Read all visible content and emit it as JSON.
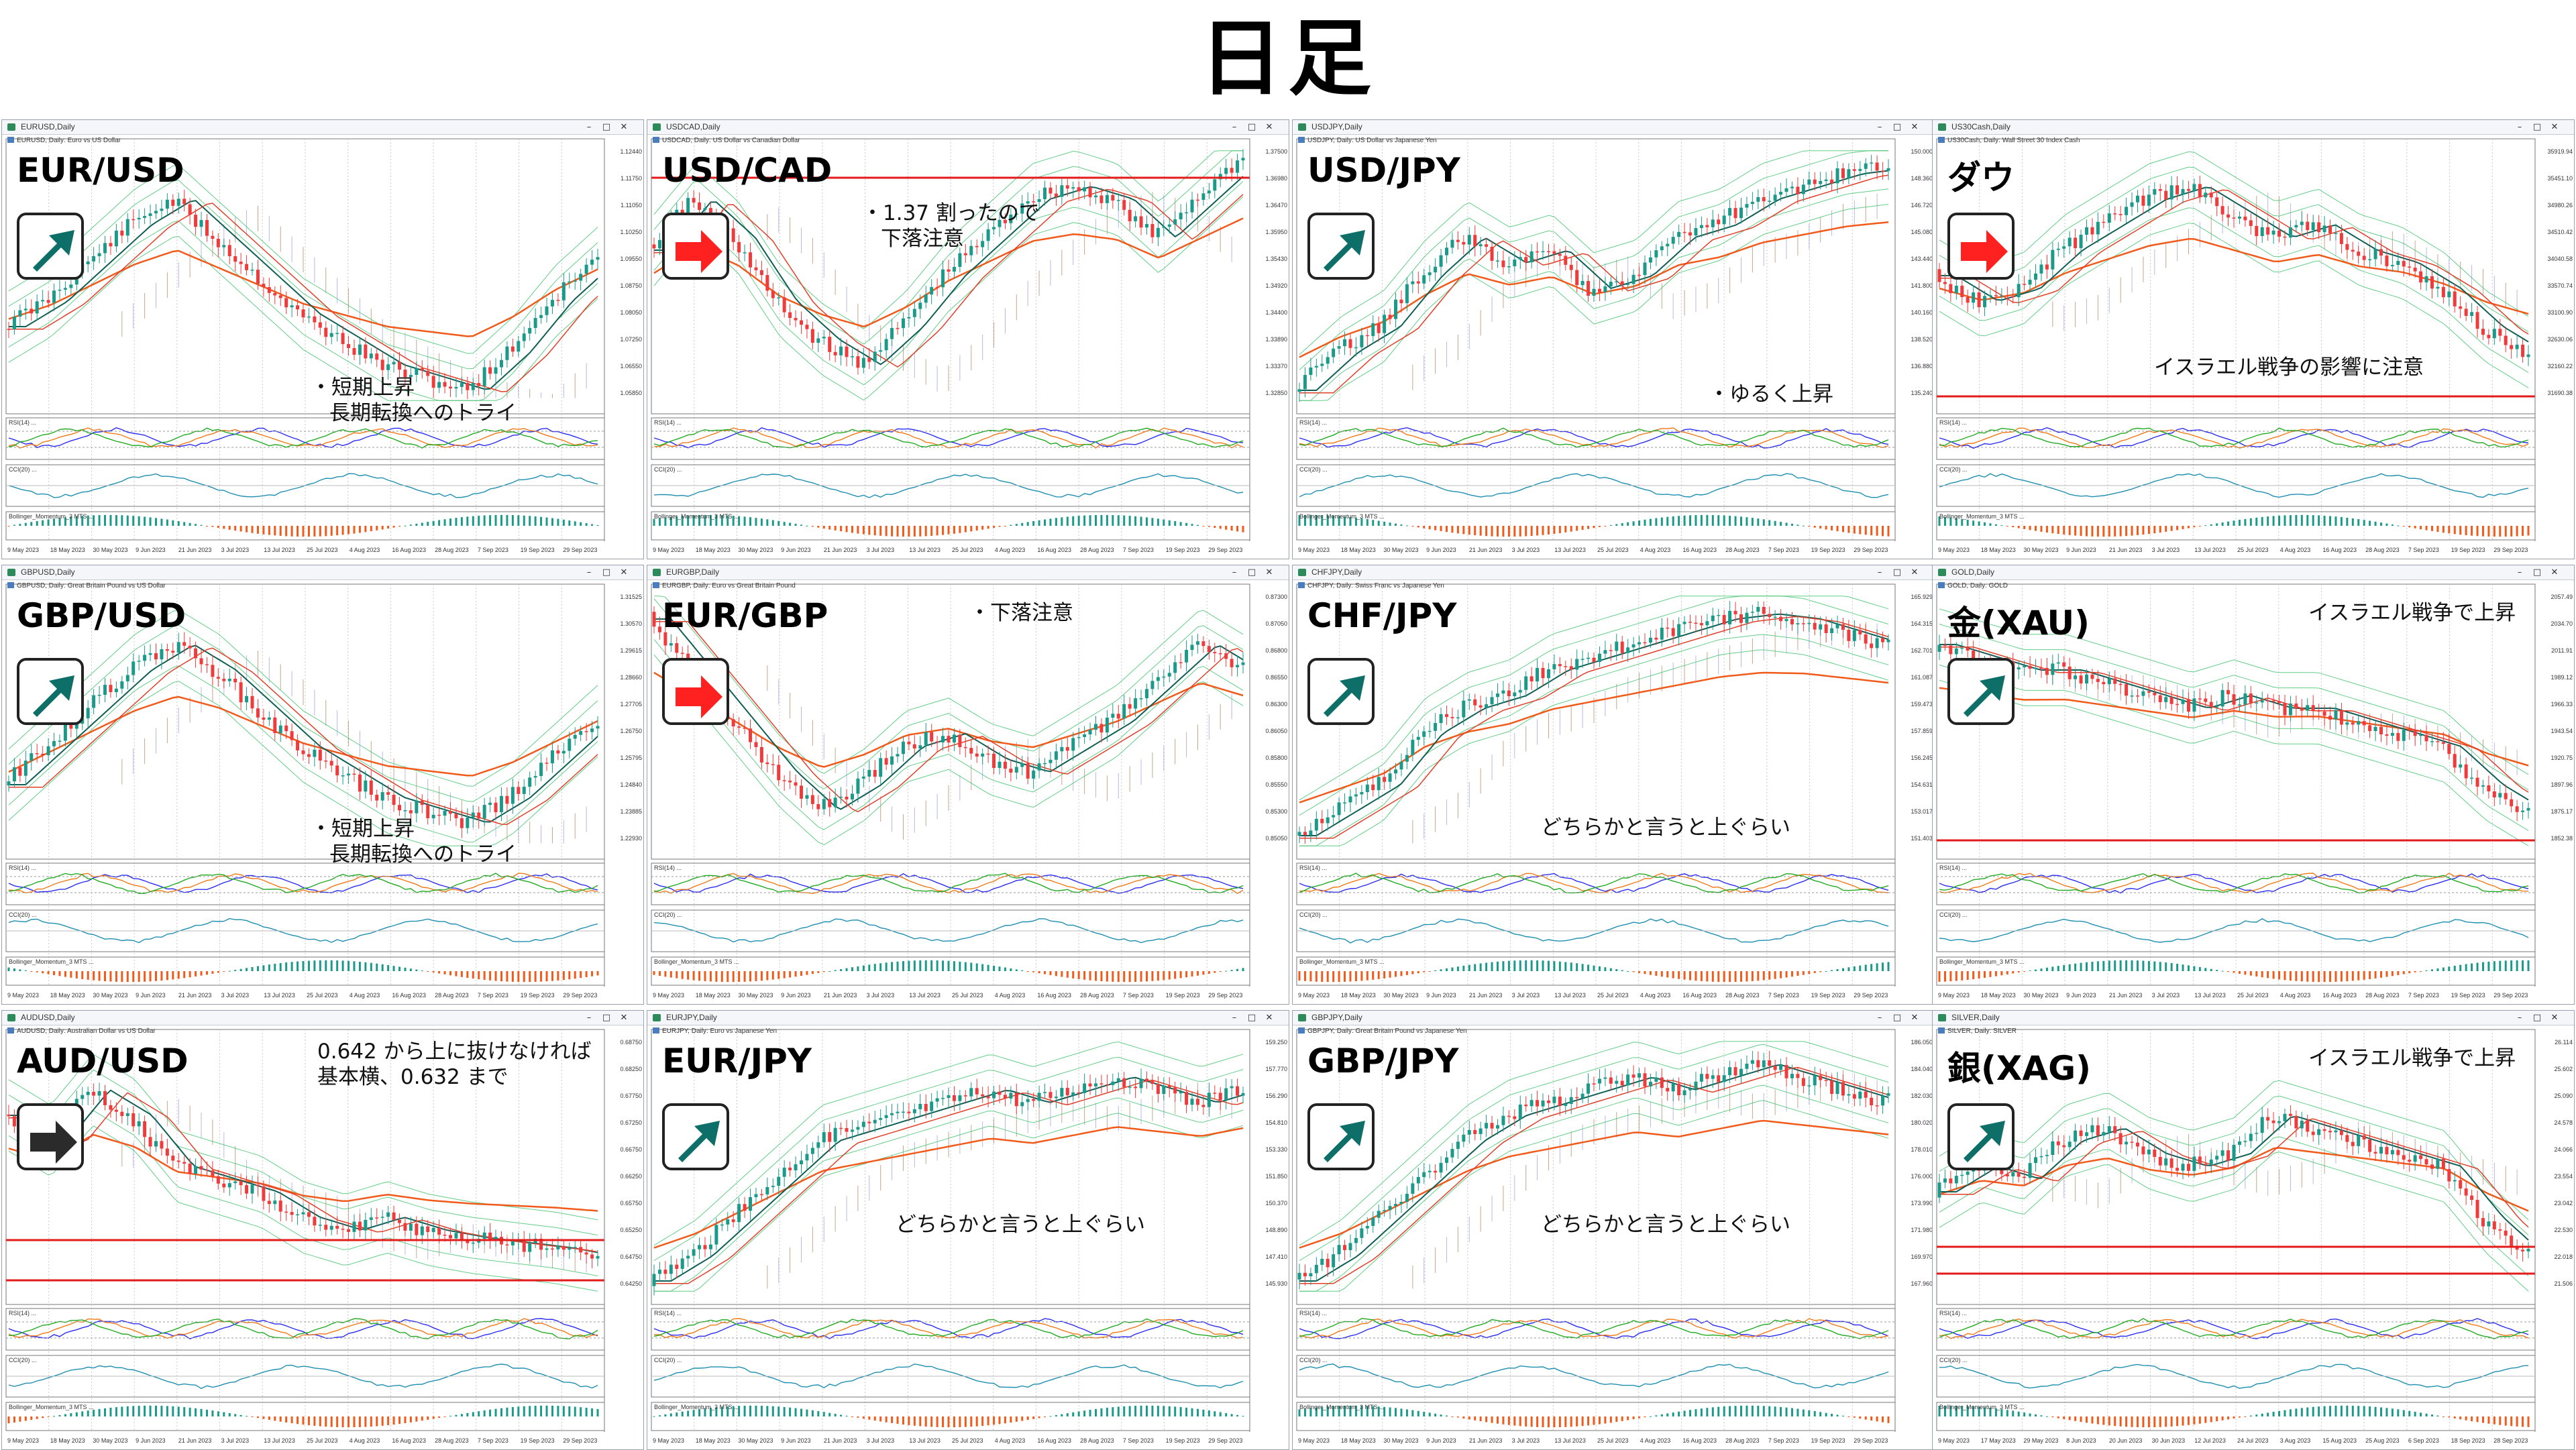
{
  "page_title": "日足",
  "colors": {
    "up_arrow": "#0e6f68",
    "down_arrow": "#ff2020",
    "flat_arrow": "#2b2b2b",
    "bull_candle": "#1b9a8a",
    "bear_candle": "#ef3b3b",
    "ma_long": "#f05a1a",
    "ma_short": "#0f5e55",
    "band": "#3cc06a"
  },
  "bottom_dates": [
    "9 May 2023",
    "18 May 2023",
    "30 May 2023",
    "9 Jun 2023",
    "21 Jun 2023",
    "3 Jul 2023",
    "13 Jul 2023",
    "25 Jul 2023",
    "4 Aug 2023",
    "16 Aug 2023",
    "28 Aug 2023",
    "7 Sep 2023",
    "19 Sep 2023",
    "29 Sep 2023"
  ],
  "bottom_dates_silver": [
    "9 May 2023",
    "17 May 2023",
    "29 May 2023",
    "8 Jun 2023",
    "20 Jun 2023",
    "30 Jun 2023",
    "12 Jul 2023",
    "24 Jul 2023",
    "3 Aug 2023",
    "15 Aug 2023",
    "25 Aug 2023",
    "6 Sep 2023",
    "18 Sep 2023",
    "28 Sep 2023"
  ],
  "indicator_labels": {
    "rsi": "RSI(14) ...",
    "cci": "CCI(20) ...",
    "momentum": "Bollinger_Momentum_3 MTS ..."
  },
  "panels": [
    {
      "id": "eurusd",
      "window_title": "EURUSD,Daily",
      "subtitle": "EURUSD, Daily: Euro vs US Dollar",
      "pair": "EUR/USD",
      "arrow": "up",
      "notes": [
        "・短期上昇",
        "長期転換へのトライ"
      ],
      "prices": [
        "1.12440",
        "1.11750",
        "1.11050",
        "1.10250",
        "1.09550",
        "1.08750",
        "1.08050",
        "1.07250",
        "1.06550",
        "1.05850"
      ]
    },
    {
      "id": "usdcad",
      "window_title": "USDCAD,Daily",
      "subtitle": "USDCAD, Daily: US Dollar vs Canadian Dollar",
      "pair": "USD/CAD",
      "arrow": "down",
      "notes": [
        "・1.37 割ったので",
        "下落注意"
      ],
      "prices": [
        "1.37500",
        "1.36980",
        "1.36470",
        "1.35950",
        "1.35430",
        "1.34920",
        "1.34400",
        "1.33890",
        "1.33370",
        "1.32850"
      ]
    },
    {
      "id": "usdjpy",
      "window_title": "USDJPY,Daily",
      "subtitle": "USDJPY, Daily: US Dollar vs Japanese Yen",
      "pair": "USD/JPY",
      "arrow": "up",
      "notes": [
        "・ゆるく上昇"
      ],
      "prices": [
        "150.000",
        "148.360",
        "146.720",
        "145.080",
        "143.440",
        "141.800",
        "140.160",
        "138.520",
        "136.880",
        "135.240"
      ]
    },
    {
      "id": "us30",
      "window_title": "US30Cash,Daily",
      "subtitle": "US30Cash, Daily: Wall Street 30 Index Cash",
      "pair": "ダウ",
      "arrow": "down",
      "notes": [
        "イスラエル戦争の影響に注意"
      ],
      "prices": [
        "35919.94",
        "35451.10",
        "34980.26",
        "34510.42",
        "34040.58",
        "33570.74",
        "33100.90",
        "32630.06",
        "32160.22",
        "31690.38"
      ]
    },
    {
      "id": "gbpusd",
      "window_title": "GBPUSD,Daily",
      "subtitle": "GBPUSD, Daily: Great Britain Pound vs US Dollar",
      "pair": "GBP/USD",
      "arrow": "up",
      "notes": [
        "・短期上昇",
        "長期転換へのトライ"
      ],
      "prices": [
        "1.31525",
        "1.30570",
        "1.29615",
        "1.28660",
        "1.27705",
        "1.26750",
        "1.25795",
        "1.24840",
        "1.23885",
        "1.22930"
      ]
    },
    {
      "id": "eurgbp",
      "window_title": "EURGBP,Daily",
      "subtitle": "EURGBP, Daily: Euro vs Great Britain Pound",
      "pair": "EUR/GBP",
      "arrow": "down",
      "notes": [
        "・下落注意"
      ],
      "prices": [
        "0.87300",
        "0.87050",
        "0.86800",
        "0.86550",
        "0.86300",
        "0.86050",
        "0.85800",
        "0.85550",
        "0.85300",
        "0.85050"
      ]
    },
    {
      "id": "chfjpy",
      "window_title": "CHFJPY,Daily",
      "subtitle": "CHFJPY, Daily: Swiss Franc vs Japanese Yen",
      "pair": "CHF/JPY",
      "arrow": "up",
      "notes": [
        "どちらかと言うと上ぐらい"
      ],
      "prices": [
        "165.929",
        "164.315",
        "162.701",
        "161.087",
        "159.473",
        "157.859",
        "156.245",
        "154.631",
        "153.017",
        "151.403"
      ]
    },
    {
      "id": "gold",
      "window_title": "GOLD,Daily",
      "subtitle": "GOLD, Daily: GOLD",
      "pair": "金(XAU)",
      "arrow": "up",
      "notes": [
        "イスラエル戦争で上昇"
      ],
      "prices": [
        "2057.49",
        "2034.70",
        "2011.91",
        "1989.12",
        "1966.33",
        "1943.54",
        "1920.75",
        "1897.96",
        "1875.17",
        "1852.38"
      ]
    },
    {
      "id": "audusd",
      "window_title": "AUDUSD,Daily",
      "subtitle": "AUDUSD, Daily: Australian Dollar vs US Dollar",
      "pair": "AUD/USD",
      "arrow": "flat",
      "notes": [
        "0.642 から上に抜けなければ",
        "基本横、0.632 まで"
      ],
      "prices": [
        "0.68750",
        "0.68250",
        "0.67750",
        "0.67250",
        "0.66750",
        "0.66250",
        "0.65750",
        "0.65250",
        "0.64750",
        "0.64250"
      ]
    },
    {
      "id": "eurjpy",
      "window_title": "EURJPY,Daily",
      "subtitle": "EURJPY, Daily: Euro vs Japanese Yen",
      "pair": "EUR/JPY",
      "arrow": "up",
      "notes": [
        "どちらかと言うと上ぐらい"
      ],
      "prices": [
        "159.250",
        "157.770",
        "156.290",
        "154.810",
        "153.330",
        "151.850",
        "150.370",
        "148.890",
        "147.410",
        "145.930"
      ]
    },
    {
      "id": "gbpjpy",
      "window_title": "GBPJPY,Daily",
      "subtitle": "GBPJPY, Daily: Great Britain Pound vs Japanese Yen",
      "pair": "GBP/JPY",
      "arrow": "up",
      "notes": [
        "どちらかと言うと上ぐらい"
      ],
      "prices": [
        "186.050",
        "184.040",
        "182.030",
        "180.020",
        "178.010",
        "176.000",
        "173.990",
        "171.980",
        "169.970",
        "167.960"
      ]
    },
    {
      "id": "silver",
      "window_title": "SILVER,Daily",
      "subtitle": "SILVER, Daily: SILVER",
      "pair": "銀(XAG)",
      "arrow": "up",
      "notes": [
        "イスラエル戦争で上昇"
      ],
      "prices": [
        "26.114",
        "25.602",
        "25.090",
        "24.578",
        "24.066",
        "23.554",
        "23.042",
        "22.530",
        "22.018",
        "21.506"
      ]
    }
  ]
}
